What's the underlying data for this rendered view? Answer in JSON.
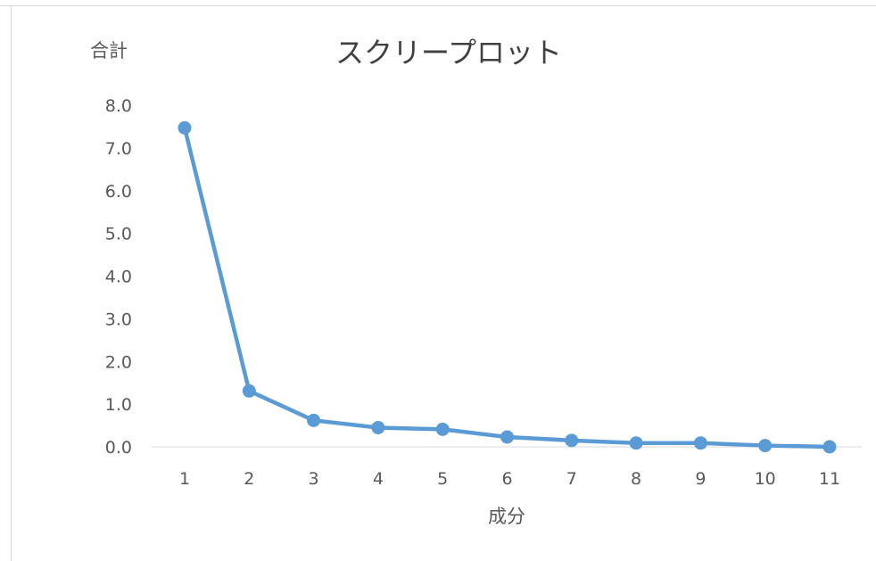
{
  "chart_data": {
    "type": "line",
    "title": "スクリープロット",
    "xlabel": "成分",
    "ylabel": "合計",
    "categories": [
      "1",
      "2",
      "3",
      "4",
      "5",
      "6",
      "7",
      "8",
      "9",
      "10",
      "11"
    ],
    "series": [
      {
        "values": [
          7.47,
          1.31,
          0.62,
          0.45,
          0.41,
          0.23,
          0.15,
          0.09,
          0.09,
          0.03,
          0.0
        ],
        "color": "#5b9bd5"
      }
    ],
    "ylim": [
      0,
      8
    ],
    "yticks": [
      "0.0",
      "1.0",
      "2.0",
      "3.0",
      "4.0",
      "5.0",
      "6.0",
      "7.0",
      "8.0"
    ],
    "grid": false,
    "legend": "none"
  }
}
